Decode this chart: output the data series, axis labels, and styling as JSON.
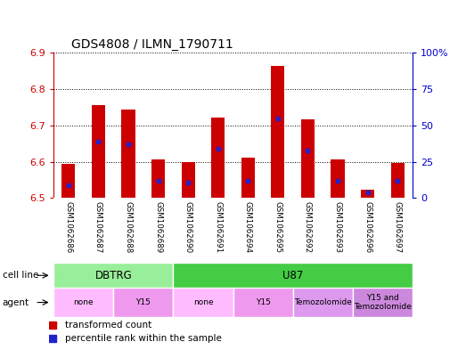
{
  "title": "GDS4808 / ILMN_1790711",
  "samples": [
    "GSM1062686",
    "GSM1062687",
    "GSM1062688",
    "GSM1062689",
    "GSM1062690",
    "GSM1062691",
    "GSM1062694",
    "GSM1062695",
    "GSM1062692",
    "GSM1062693",
    "GSM1062696",
    "GSM1062697"
  ],
  "red_values": [
    6.595,
    6.755,
    6.745,
    6.607,
    6.598,
    6.722,
    6.612,
    6.864,
    6.718,
    6.607,
    6.524,
    6.597
  ],
  "blue_values": [
    6.535,
    6.655,
    6.648,
    6.548,
    6.543,
    6.635,
    6.547,
    6.72,
    6.63,
    6.548,
    6.515,
    6.548
  ],
  "ylim_left": [
    6.5,
    6.9
  ],
  "ylim_right": [
    0,
    100
  ],
  "yticks_left": [
    6.5,
    6.6,
    6.7,
    6.8,
    6.9
  ],
  "ytick_labels_left": [
    "6.5",
    "6.6",
    "6.7",
    "6.8",
    "6.9"
  ],
  "yticks_right": [
    0,
    25,
    50,
    75,
    100
  ],
  "ytick_labels_right": [
    "0",
    "25",
    "50",
    "75",
    "100%"
  ],
  "bar_color": "#cc0000",
  "dot_color": "#2222cc",
  "bar_bottom": 6.5,
  "bar_width": 0.45,
  "cell_line_groups": [
    {
      "label": "DBTRG",
      "span": [
        0,
        4
      ],
      "color": "#99ee99"
    },
    {
      "label": "U87",
      "span": [
        4,
        12
      ],
      "color": "#44cc44"
    }
  ],
  "agent_groups": [
    {
      "label": "none",
      "span": [
        0,
        2
      ],
      "color": "#ffbbff"
    },
    {
      "label": "Y15",
      "span": [
        2,
        4
      ],
      "color": "#ee99ee"
    },
    {
      "label": "none",
      "span": [
        4,
        6
      ],
      "color": "#ffbbff"
    },
    {
      "label": "Y15",
      "span": [
        6,
        8
      ],
      "color": "#ee99ee"
    },
    {
      "label": "Temozolomide",
      "span": [
        8,
        10
      ],
      "color": "#dd99ee"
    },
    {
      "label": "Y15 and\nTemozolomide",
      "span": [
        10,
        12
      ],
      "color": "#cc88dd"
    }
  ],
  "cell_line_label": "cell line",
  "agent_label": "agent",
  "legend_red": "transformed count",
  "legend_blue": "percentile rank within the sample",
  "left_axis_color": "#cc0000",
  "right_axis_color": "#0000cc",
  "grid_linestyle": "dotted",
  "sample_bg_color": "#d8d8d8",
  "sample_sep_color": "#ffffff"
}
